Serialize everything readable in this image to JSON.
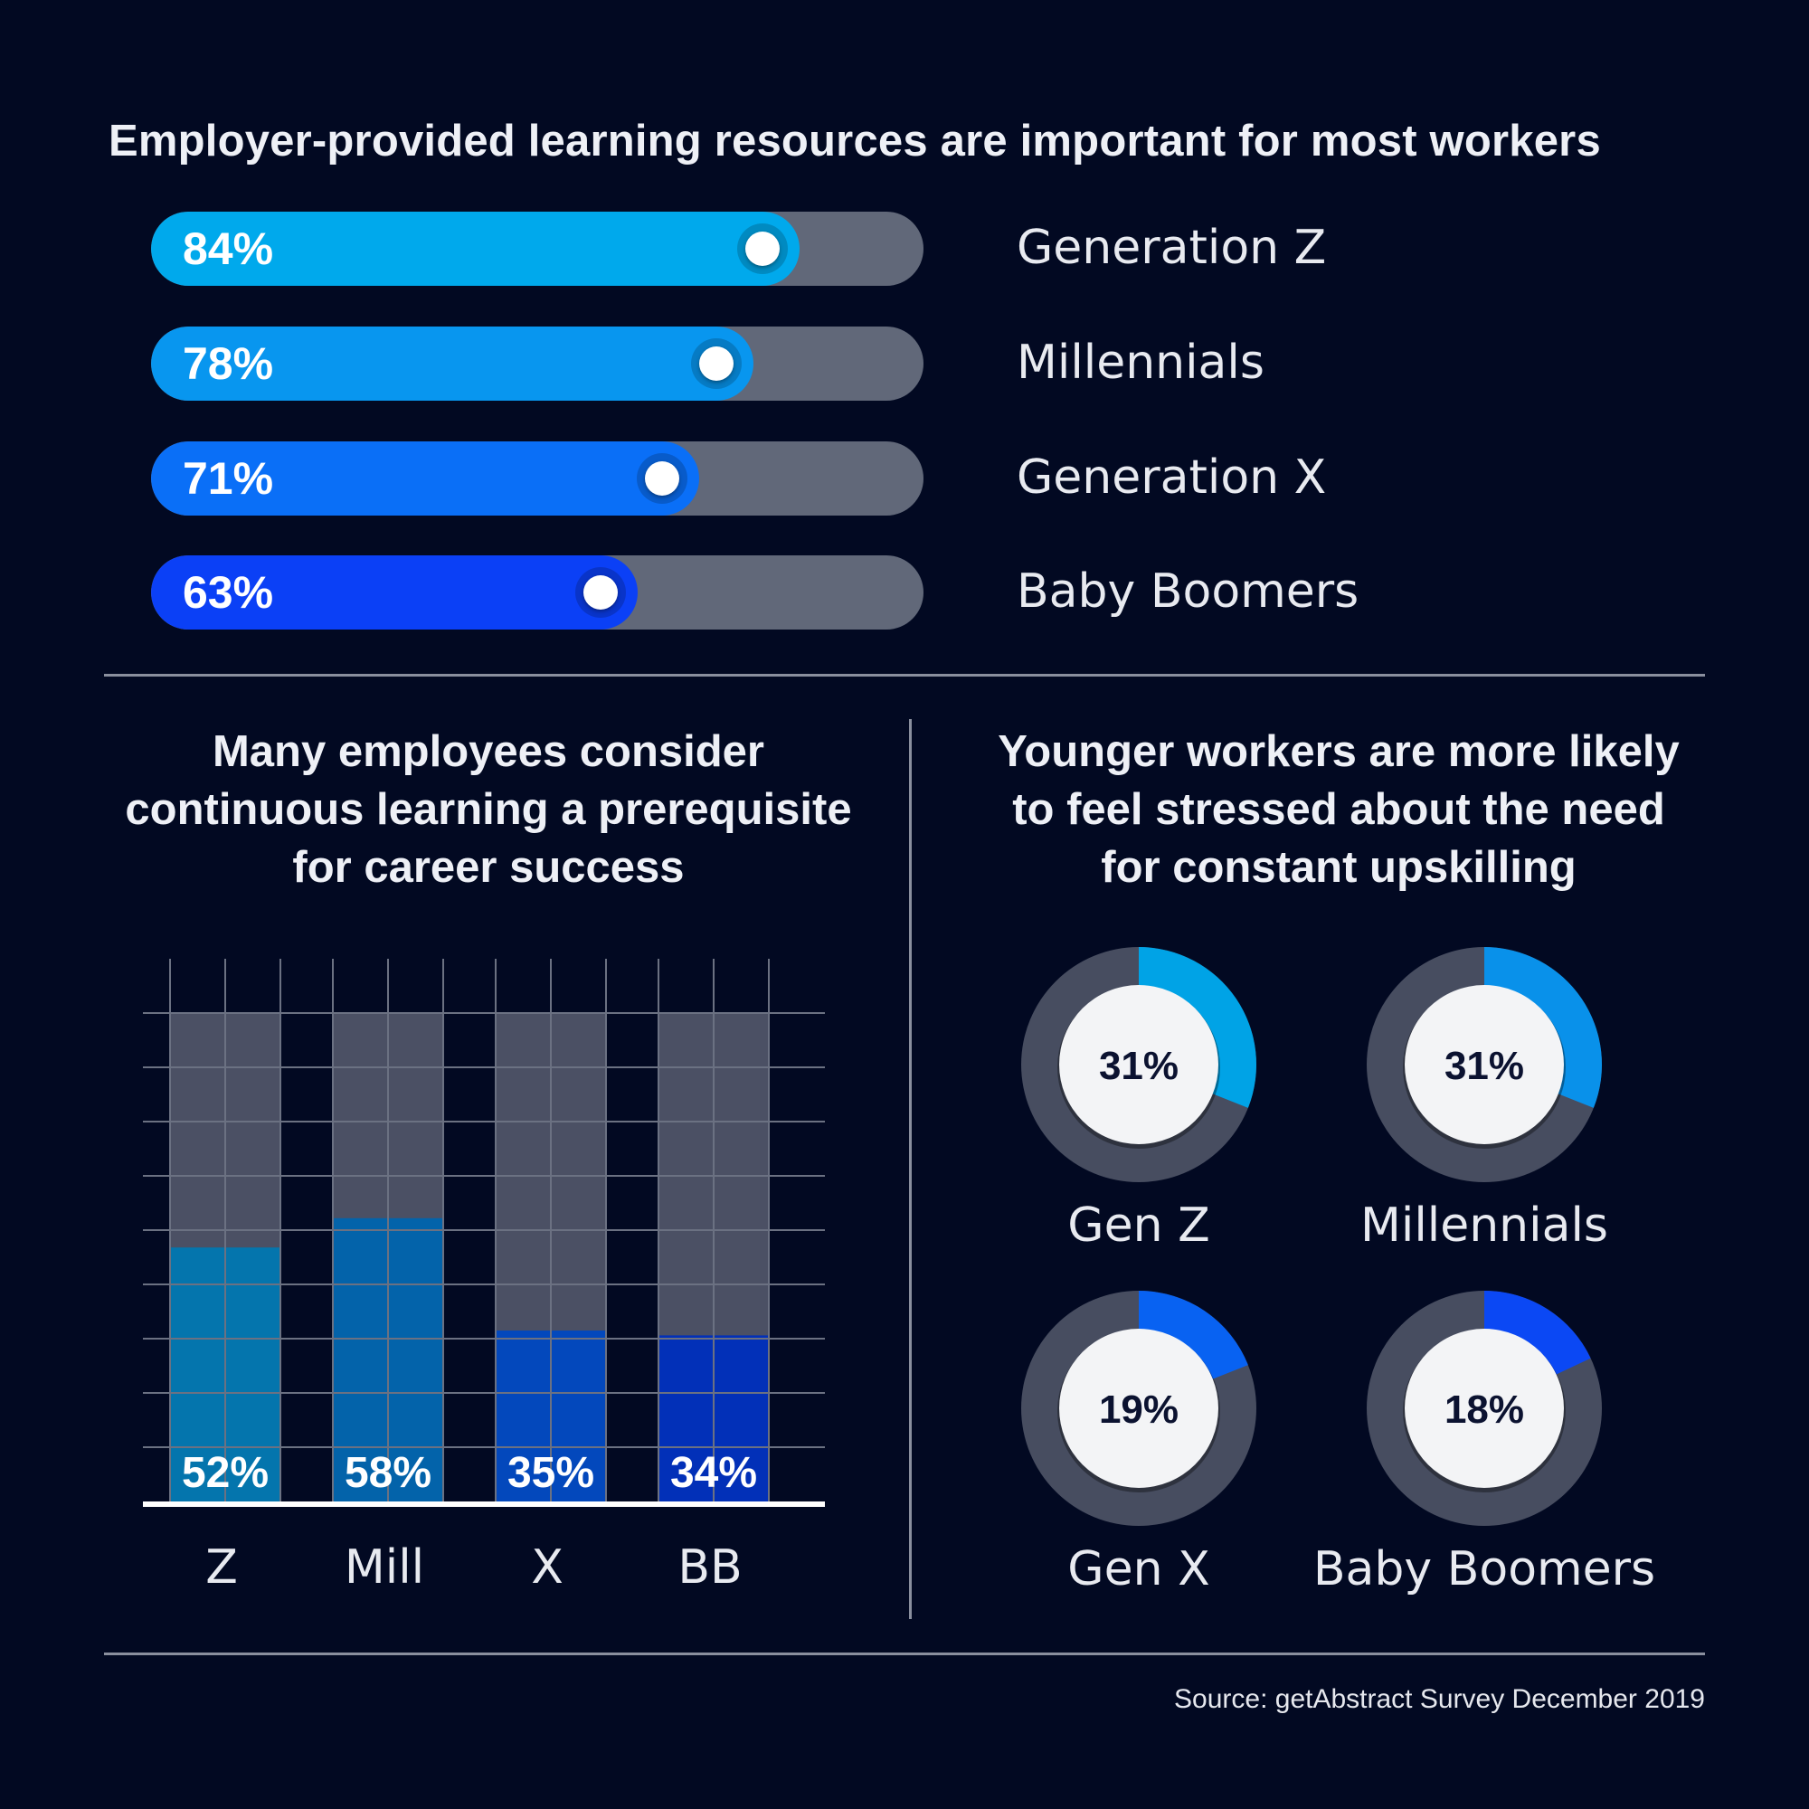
{
  "title": "Employer-provided learning resources are important for most workers",
  "progress_bars": [
    {
      "label": "Generation Z",
      "value": 84,
      "value_text": "84%",
      "color": "#00a9ec"
    },
    {
      "label": "Millennials",
      "value": 78,
      "value_text": "78%",
      "color": "#0896ef"
    },
    {
      "label": "Generation X",
      "value": 71,
      "value_text": "71%",
      "color": "#0a6ff7"
    },
    {
      "label": "Baby Boomers",
      "value": 63,
      "value_text": "63%",
      "color": "#0b40f6"
    }
  ],
  "bar_section": {
    "title_lines": [
      "Many employees consider",
      "continuous learning a prerequisite",
      "for career success"
    ]
  },
  "donut_section": {
    "title_lines": [
      "Younger workers are more likely",
      "to feel stressed about the need",
      "for constant upskilling"
    ]
  },
  "source": "Source: getAbstract Survey December 2019",
  "colors": {
    "background": "#020922",
    "track": "#616879",
    "donut_track": "#474d60",
    "bar_background": "#4b5064"
  },
  "chart_data": [
    {
      "type": "bar",
      "title": "Employer-provided learning resources are important for most workers",
      "orientation": "horizontal",
      "categories": [
        "Generation Z",
        "Millennials",
        "Generation X",
        "Baby Boomers"
      ],
      "values": [
        84,
        78,
        71,
        63
      ],
      "unit": "%",
      "xlim": [
        0,
        100
      ]
    },
    {
      "type": "bar",
      "title": "Many employees consider continuous learning a prerequisite for career success",
      "categories": [
        "Z",
        "Mill",
        "X",
        "BB"
      ],
      "values": [
        52,
        58,
        35,
        34
      ],
      "labels": [
        "52%",
        "58%",
        "35%",
        "34%"
      ],
      "colors": [
        "#0475ad",
        "#0363aa",
        "#0348bc",
        "#0230b8"
      ],
      "ylim": [
        0,
        100
      ],
      "grid": true
    },
    {
      "type": "pie",
      "title": "Younger workers are more likely to feel stressed about the need for constant upskilling",
      "style": "donut",
      "items": [
        {
          "label": "Gen Z",
          "value": 31,
          "value_text": "31%",
          "color": "#00a3e6"
        },
        {
          "label": "Millennials",
          "value": 31,
          "value_text": "31%",
          "color": "#0991ea"
        },
        {
          "label": "Gen X",
          "value": 19,
          "value_text": "19%",
          "color": "#0862f2"
        },
        {
          "label": "Baby Boomers",
          "value": 18,
          "value_text": "18%",
          "color": "#0b48f4"
        }
      ]
    }
  ]
}
